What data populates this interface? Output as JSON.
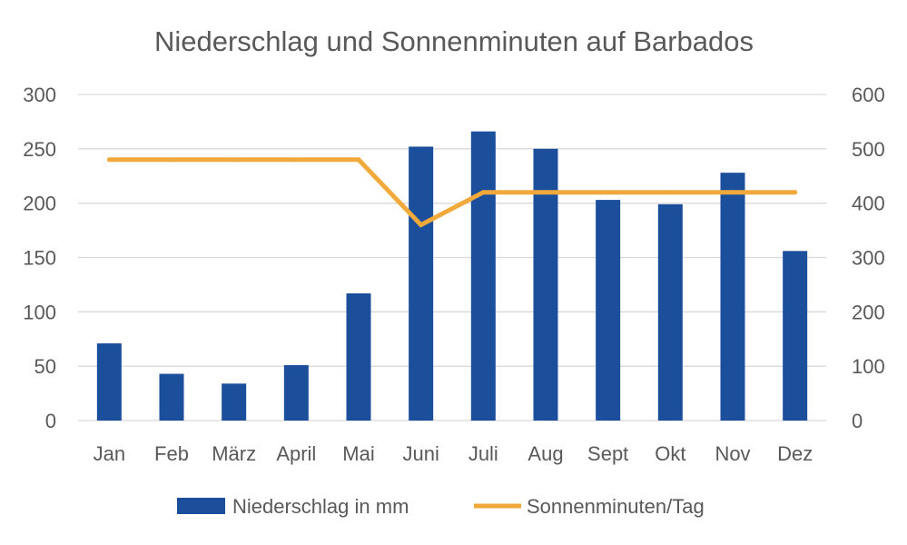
{
  "chart_data": {
    "type": "bar",
    "title": "Niederschlag und Sonnenminuten auf Barbados",
    "categories": [
      "Jan",
      "Feb",
      "März",
      "April",
      "Mai",
      "Juni",
      "Juli",
      "Aug",
      "Sept",
      "Okt",
      "Nov",
      "Dez"
    ],
    "series": [
      {
        "name": "Niederschlag in mm",
        "type": "bar",
        "axis": "left",
        "color": "#1B4F9C",
        "values": [
          71,
          43,
          34,
          51,
          117,
          252,
          266,
          250,
          203,
          199,
          228,
          156
        ]
      },
      {
        "name": "Sonnenminuten/Tag",
        "type": "line",
        "axis": "right",
        "color": "#F2A93B",
        "values": [
          480,
          480,
          480,
          480,
          480,
          360,
          420,
          420,
          420,
          420,
          420,
          420
        ]
      }
    ],
    "y_left": {
      "min": 0,
      "max": 300,
      "ticks": [
        "0",
        "50",
        "100",
        "150",
        "200",
        "250",
        "300"
      ]
    },
    "y_right": {
      "min": 0,
      "max": 600,
      "ticks": [
        "0",
        "100",
        "200",
        "300",
        "400",
        "500",
        "600"
      ]
    },
    "grid": true,
    "legend_position": "bottom"
  }
}
